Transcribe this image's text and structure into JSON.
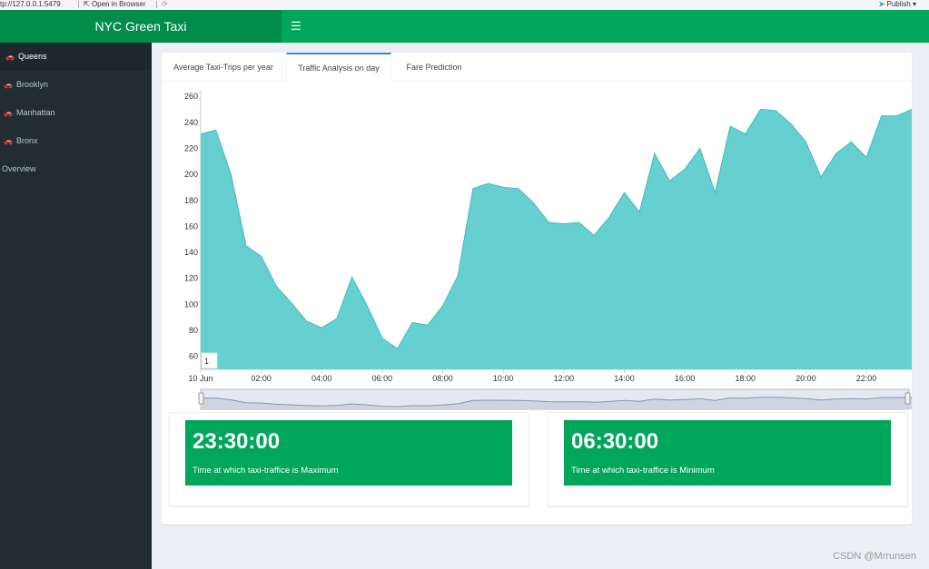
{
  "browser": {
    "url": "tp://127.0.0.1:5479",
    "open_in_browser": "Open in Browser",
    "publish": "Publish"
  },
  "header": {
    "title": "NYC Green Taxi",
    "menu_icon": "☰"
  },
  "sidebar": {
    "items": [
      {
        "label": "Queens",
        "icon": "car-icon",
        "active": true
      },
      {
        "label": "Brooklyn",
        "icon": "car-icon",
        "active": false
      },
      {
        "label": "Manhattan",
        "icon": "car-icon",
        "active": false
      },
      {
        "label": "Bronx",
        "icon": "car-icon",
        "active": false
      },
      {
        "label": "Overview",
        "icon": "",
        "active": false
      }
    ]
  },
  "tabs": [
    {
      "label": "Average Taxi-Trips per year",
      "active": false
    },
    {
      "label": "Traffic Analysis on day",
      "active": true
    },
    {
      "label": "Fare Prediction",
      "active": false
    }
  ],
  "chart_data": {
    "type": "area",
    "x_start": "10 Jun",
    "x_ticks": [
      "10 Jun",
      "02:00",
      "04:00",
      "06:00",
      "08:00",
      "10:00",
      "12:00",
      "14:00",
      "16:00",
      "18:00",
      "20:00",
      "22:00"
    ],
    "y_ticks": [
      60,
      80,
      100,
      120,
      140,
      160,
      180,
      200,
      220,
      240,
      260
    ],
    "ylim": [
      50,
      265
    ],
    "x_unit": "hours",
    "xlim": [
      0,
      23.5
    ],
    "x": [
      0,
      0.5,
      1,
      1.5,
      2,
      2.5,
      3,
      3.5,
      4,
      4.5,
      5,
      5.5,
      6,
      6.5,
      7,
      7.5,
      8,
      8.5,
      9,
      9.5,
      10,
      10.5,
      11,
      11.5,
      12,
      12.5,
      13,
      13.5,
      14,
      14.5,
      15,
      15.5,
      16,
      16.5,
      17,
      17.5,
      18,
      18.5,
      19,
      19.5,
      20,
      20.5,
      21,
      21.5,
      22,
      22.5,
      23,
      23.5
    ],
    "values": [
      231,
      234,
      200,
      145,
      137,
      114,
      101,
      87,
      82,
      89,
      121,
      99,
      74,
      66,
      86,
      84,
      99,
      122,
      189,
      193,
      190,
      189,
      178,
      163,
      162,
      163,
      153,
      167,
      186,
      171,
      216,
      195,
      204,
      220,
      186,
      237,
      231,
      250,
      249,
      239,
      225,
      198,
      216,
      225,
      213,
      245,
      245,
      250
    ],
    "fill_color": "#66cfcf",
    "line_color": "#3fbdbd",
    "annotation": "1",
    "navigator": true
  },
  "stats": [
    {
      "value": "23:30:00",
      "label": "Time at which taxi-traffice is Maximum"
    },
    {
      "value": "06:30:00",
      "label": "Time at which taxi-traffice is Minimum"
    }
  ],
  "watermark": "CSDN @Mrrunsen"
}
